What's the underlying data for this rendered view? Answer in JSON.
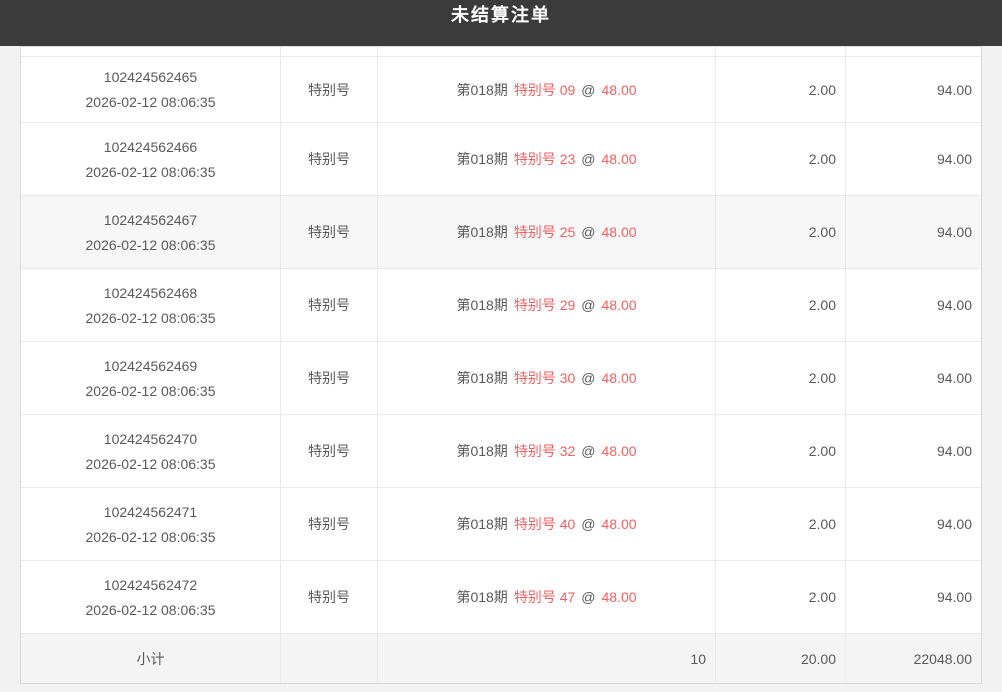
{
  "header": {
    "title": "未结算注单"
  },
  "table": {
    "rows": [
      {
        "id": "102424562465",
        "time": "2026-02-12 08:06:35",
        "type": "特别号",
        "period": "第018期",
        "pick": "特别号 09",
        "at_sign": "@",
        "odds": "48.00",
        "amount": "2.00",
        "to_win": "94.00",
        "highlighted": false
      },
      {
        "id": "102424562466",
        "time": "2026-02-12 08:06:35",
        "type": "特别号",
        "period": "第018期",
        "pick": "特别号 23",
        "at_sign": "@",
        "odds": "48.00",
        "amount": "2.00",
        "to_win": "94.00",
        "highlighted": false
      },
      {
        "id": "102424562467",
        "time": "2026-02-12 08:06:35",
        "type": "特别号",
        "period": "第018期",
        "pick": "特别号 25",
        "at_sign": "@",
        "odds": "48.00",
        "amount": "2.00",
        "to_win": "94.00",
        "highlighted": true
      },
      {
        "id": "102424562468",
        "time": "2026-02-12 08:06:35",
        "type": "特别号",
        "period": "第018期",
        "pick": "特别号 29",
        "at_sign": "@",
        "odds": "48.00",
        "amount": "2.00",
        "to_win": "94.00",
        "highlighted": false
      },
      {
        "id": "102424562469",
        "time": "2026-02-12 08:06:35",
        "type": "特别号",
        "period": "第018期",
        "pick": "特别号 30",
        "at_sign": "@",
        "odds": "48.00",
        "amount": "2.00",
        "to_win": "94.00",
        "highlighted": false
      },
      {
        "id": "102424562470",
        "time": "2026-02-12 08:06:35",
        "type": "特别号",
        "period": "第018期",
        "pick": "特别号 32",
        "at_sign": "@",
        "odds": "48.00",
        "amount": "2.00",
        "to_win": "94.00",
        "highlighted": false
      },
      {
        "id": "102424562471",
        "time": "2026-02-12 08:06:35",
        "type": "特别号",
        "period": "第018期",
        "pick": "特别号 40",
        "at_sign": "@",
        "odds": "48.00",
        "amount": "2.00",
        "to_win": "94.00",
        "highlighted": false
      },
      {
        "id": "102424562472",
        "time": "2026-02-12 08:06:35",
        "type": "特别号",
        "period": "第018期",
        "pick": "特别号 47",
        "at_sign": "@",
        "odds": "48.00",
        "amount": "2.00",
        "to_win": "94.00",
        "highlighted": false
      }
    ],
    "footer": {
      "label": "小计",
      "count": "10",
      "total_amount": "20.00",
      "total_win": "22048.00"
    }
  },
  "colors": {
    "titlebar_bg": "#3b3b3b",
    "accent_red": "#f25f5f",
    "highlight_row_bg": "#f7f7f7",
    "footer_row_bg": "#f4f4f4"
  }
}
